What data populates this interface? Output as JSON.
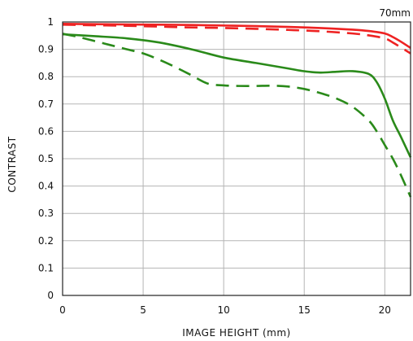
{
  "chart_data": {
    "type": "line",
    "annotation": "70mm",
    "xlabel": "IMAGE HEIGHT (mm)",
    "ylabel": "CONTRAST",
    "xlim": [
      0,
      21.6
    ],
    "ylim": [
      0,
      1
    ],
    "x_ticks": [
      "0",
      "5",
      "10",
      "15",
      "20"
    ],
    "y_ticks": [
      "0",
      "0.1",
      "0.2",
      "0.3",
      "0.4",
      "0.5",
      "0.6",
      "0.7",
      "0.8",
      "0.9",
      "1"
    ],
    "grid": true,
    "series": [
      {
        "color": "#ee2222",
        "dash": false,
        "x": [
          0,
          2,
          4,
          6,
          8,
          10,
          12,
          14,
          16,
          18,
          19,
          20,
          20.5,
          21,
          21.6
        ],
        "y": [
          0.993,
          0.992,
          0.991,
          0.99,
          0.989,
          0.987,
          0.985,
          0.982,
          0.978,
          0.972,
          0.967,
          0.958,
          0.945,
          0.928,
          0.905
        ]
      },
      {
        "color": "#ee2222",
        "dash": true,
        "x": [
          0,
          2,
          4,
          6,
          8,
          10,
          12,
          14,
          16,
          18,
          19,
          20,
          20.5,
          21,
          21.6
        ],
        "y": [
          0.99,
          0.988,
          0.986,
          0.983,
          0.98,
          0.978,
          0.975,
          0.971,
          0.966,
          0.958,
          0.951,
          0.94,
          0.925,
          0.907,
          0.885
        ]
      },
      {
        "color": "#2a8a1a",
        "dash": false,
        "x": [
          0,
          2,
          4,
          6,
          8,
          10,
          12,
          14,
          15,
          16,
          17,
          18,
          19,
          19.5,
          20,
          20.5,
          21,
          21.6
        ],
        "y": [
          0.955,
          0.948,
          0.94,
          0.925,
          0.9,
          0.87,
          0.85,
          0.83,
          0.82,
          0.815,
          0.818,
          0.82,
          0.81,
          0.78,
          0.72,
          0.64,
          0.58,
          0.505
        ]
      },
      {
        "color": "#2a8a1a",
        "dash": true,
        "x": [
          0,
          1,
          2,
          3,
          4,
          5,
          6,
          7,
          8,
          9,
          10,
          11,
          12,
          13,
          14,
          15,
          16,
          17,
          18,
          19,
          19.5,
          20,
          20.5,
          21,
          21.6
        ],
        "y": [
          0.957,
          0.945,
          0.93,
          0.915,
          0.9,
          0.885,
          0.862,
          0.835,
          0.805,
          0.775,
          0.768,
          0.766,
          0.766,
          0.767,
          0.764,
          0.755,
          0.74,
          0.72,
          0.69,
          0.64,
          0.6,
          0.55,
          0.5,
          0.44,
          0.36
        ]
      }
    ]
  }
}
